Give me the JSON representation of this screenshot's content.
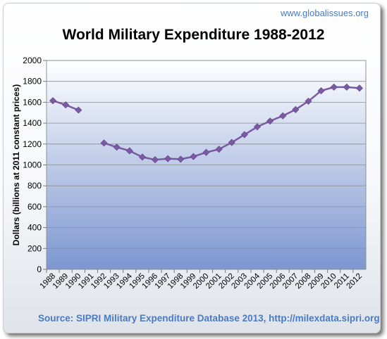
{
  "site_label": "www.globalissues.org",
  "source_text": "Source: SIPRI Military Expenditure Database 2013, http://milexdata.sipri.org",
  "colors": {
    "line": "#7a5aa3",
    "marker": "#7a5aa3",
    "plot_top": "#ffffff",
    "plot_bottom": "#7c96d0",
    "accent_text": "#4a7ac0"
  },
  "chart_data": {
    "type": "line",
    "title": "World Military Expenditure 1988-2012",
    "xlabel": "",
    "ylabel": "Dollars (billions at 2011 constant prices)",
    "ylim": [
      0,
      2000
    ],
    "yticks": [
      0,
      200,
      400,
      600,
      800,
      1000,
      1200,
      1400,
      1600,
      1800,
      2000
    ],
    "grid": true,
    "x": [
      "1988",
      "1989",
      "1990",
      "1991",
      "1992",
      "1993",
      "1994",
      "1995",
      "1996",
      "1997",
      "1998",
      "1999",
      "2000",
      "2001",
      "2002",
      "2003",
      "2004",
      "2005",
      "2006",
      "2007",
      "2008",
      "2009",
      "2010",
      "2011",
      "2012"
    ],
    "series": [
      {
        "values": [
          1615,
          1575,
          1525,
          null,
          1210,
          1170,
          1135,
          1075,
          1050,
          1060,
          1055,
          1080,
          1120,
          1150,
          1215,
          1290,
          1365,
          1420,
          1470,
          1530,
          1610,
          1710,
          1745,
          1745,
          1735
        ]
      }
    ]
  }
}
